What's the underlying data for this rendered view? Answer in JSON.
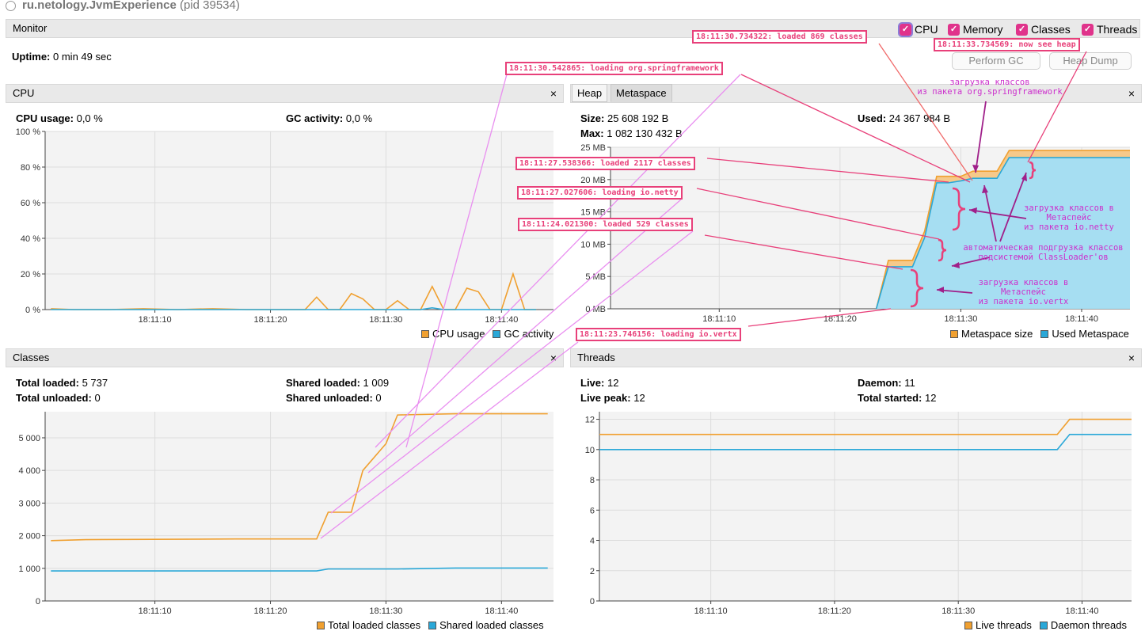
{
  "window": {
    "app_name": "ru.netology.JvmExperience",
    "pid": "(pid 39534)"
  },
  "monitor": {
    "header": "Monitor",
    "uptime_label": "Uptime:",
    "uptime_value": "0 min 49 sec",
    "checkboxes": [
      "CPU",
      "Memory",
      "Classes",
      "Threads"
    ],
    "perform_gc": "Perform GC",
    "heap_dump": "Heap Dump"
  },
  "cpu": {
    "header": "CPU",
    "usage_label": "CPU usage:",
    "usage_value": "0,0 %",
    "gc_label": "GC activity:",
    "gc_value": "0,0 %",
    "legend": [
      "CPU usage",
      "GC activity"
    ],
    "y_ticks": [
      "100 %",
      "80 %",
      "60 %",
      "40 %",
      "20 %",
      "0 %"
    ],
    "x_ticks": [
      "18:11:10",
      "18:11:20",
      "18:11:30",
      "18:11:40"
    ]
  },
  "memory": {
    "tabs": [
      "Heap",
      "Metaspace"
    ],
    "size_label": "Size:",
    "size_value": "25 608 192 B",
    "max_label": "Max:",
    "max_value": "1 082 130 432 B",
    "used_label": "Used:",
    "used_value": "24 367 984 B",
    "legend": [
      "Metaspace size",
      "Used Metaspace"
    ],
    "y_ticks": [
      "25 MB",
      "20 MB",
      "15 MB",
      "10 MB",
      "5 MB",
      "0 MB"
    ],
    "x_ticks": [
      "18:11:10",
      "18:11:20",
      "18:11:30",
      "18:11:40"
    ]
  },
  "classes": {
    "header": "Classes",
    "total_loaded_label": "Total loaded:",
    "total_loaded_value": "5 737",
    "total_unloaded_label": "Total unloaded:",
    "total_unloaded_value": "0",
    "shared_loaded_label": "Shared loaded:",
    "shared_loaded_value": "1 009",
    "shared_unloaded_label": "Shared unloaded:",
    "shared_unloaded_value": "0",
    "legend": [
      "Total loaded classes",
      "Shared loaded classes"
    ],
    "y_ticks": [
      "5 000",
      "4 000",
      "3 000",
      "2 000",
      "1 000",
      "0"
    ],
    "x_ticks": [
      "18:11:10",
      "18:11:20",
      "18:11:30",
      "18:11:40"
    ]
  },
  "threads": {
    "header": "Threads",
    "live_label": "Live:",
    "live_value": "12",
    "live_peak_label": "Live peak:",
    "live_peak_value": "12",
    "daemon_label": "Daemon:",
    "daemon_value": "11",
    "total_started_label": "Total started:",
    "total_started_value": "12",
    "legend": [
      "Live threads",
      "Daemon threads"
    ],
    "y_ticks": [
      "12",
      "10",
      "8",
      "6",
      "4",
      "2",
      "0"
    ],
    "x_ticks": [
      "18:11:10",
      "18:11:20",
      "18:11:30",
      "18:11:40"
    ]
  },
  "annotations": {
    "a1": "18:11:30.734322: loaded 869 classes",
    "a2": "18:11:33.734569: now see heap",
    "a3": "18:11:30.542865: loading org.springframework",
    "a4": "18:11:27.538366: loaded 2117 classes",
    "a5": "18:11:27.027606: loading io.netty",
    "a6": "18:11:24.021300: loaded 529 classes",
    "a7": "18:11:23.746156: loading io.vertx",
    "t1a": "загрузка классов",
    "t1b": "из пакета org.springframework",
    "t2a": "загрузка классов в",
    "t2b": "Метаспейс",
    "t2c": "из пакета io.netty",
    "t3a": "автоматическая подгрузка классов",
    "t3b": "подсистемой ClassLoader'ов",
    "t4a": "загрузка классов в",
    "t4b": "Метаспейс",
    "t4c": "из пакета io.vertx"
  },
  "colors": {
    "orange": "#f0a030",
    "blue": "#2aa8d8",
    "pink": "#e8407a",
    "violet": "#cc2fcc"
  },
  "chart_data": [
    {
      "type": "line",
      "title": "CPU",
      "x": [
        "18:11:01",
        "18:11:03",
        "18:11:06",
        "18:11:09",
        "18:11:12",
        "18:11:15",
        "18:11:18",
        "18:11:21",
        "18:11:23",
        "18:11:24",
        "18:11:25",
        "18:11:26",
        "18:11:27",
        "18:11:28",
        "18:11:29",
        "18:11:30",
        "18:11:31",
        "18:11:32",
        "18:11:33",
        "18:11:34",
        "18:11:35",
        "18:11:36",
        "18:11:37",
        "18:11:38",
        "18:11:39",
        "18:11:40",
        "18:11:41",
        "18:11:42",
        "18:11:43"
      ],
      "series": [
        {
          "name": "CPU usage",
          "values": [
            0.5,
            0,
            0,
            0.5,
            0,
            0.5,
            0,
            0,
            0,
            7,
            0,
            0,
            9,
            6,
            0,
            0,
            5,
            0,
            0,
            13,
            0,
            0,
            12,
            10,
            0,
            0,
            20,
            0,
            0
          ]
        },
        {
          "name": "GC activity",
          "values": [
            0,
            0,
            0,
            0,
            0,
            0,
            0,
            0,
            0,
            0,
            0,
            0,
            0,
            0,
            0,
            0,
            0,
            0,
            0,
            1,
            0,
            0,
            0,
            0,
            0,
            0,
            0,
            0,
            0
          ]
        }
      ],
      "ylim": [
        0,
        100
      ]
    },
    {
      "type": "area",
      "title": "Metaspace",
      "x": [
        "18:11:23",
        "18:11:24",
        "18:11:25",
        "18:11:26",
        "18:11:27",
        "18:11:28",
        "18:11:29",
        "18:11:30",
        "18:11:31",
        "18:11:33",
        "18:11:34",
        "18:11:44"
      ],
      "series": [
        {
          "name": "Metaspace size",
          "values": [
            0,
            7.5,
            7.5,
            7.5,
            12,
            20.5,
            20.5,
            20.5,
            21.3,
            21.3,
            24.5,
            24.5
          ]
        },
        {
          "name": "Used Metaspace",
          "values": [
            0,
            6.5,
            6.5,
            6.5,
            11,
            19.5,
            19.5,
            19.8,
            20.2,
            20.2,
            23.4,
            23.4
          ]
        }
      ],
      "ylim": [
        0,
        25
      ]
    },
    {
      "type": "line",
      "title": "Classes",
      "x": [
        "18:11:01",
        "18:11:04",
        "18:11:17",
        "18:11:24",
        "18:11:25",
        "18:11:27",
        "18:11:28",
        "18:11:30",
        "18:11:31",
        "18:11:36",
        "18:11:44"
      ],
      "series": [
        {
          "name": "Total loaded classes",
          "values": [
            1850,
            1880,
            1900,
            1900,
            2720,
            2720,
            4000,
            4820,
            5700,
            5737,
            5737
          ]
        },
        {
          "name": "Shared loaded classes",
          "values": [
            920,
            920,
            920,
            920,
            980,
            980,
            980,
            980,
            980,
            1009,
            1009
          ]
        }
      ],
      "ylim": [
        0,
        5800
      ]
    },
    {
      "type": "line",
      "title": "Threads",
      "x": [
        "18:11:01",
        "18:11:38",
        "18:11:39",
        "18:11:44"
      ],
      "series": [
        {
          "name": "Live threads",
          "values": [
            11,
            11,
            12,
            12
          ]
        },
        {
          "name": "Daemon threads",
          "values": [
            10,
            10,
            11,
            11
          ]
        }
      ],
      "ylim": [
        0,
        12.5
      ]
    }
  ]
}
